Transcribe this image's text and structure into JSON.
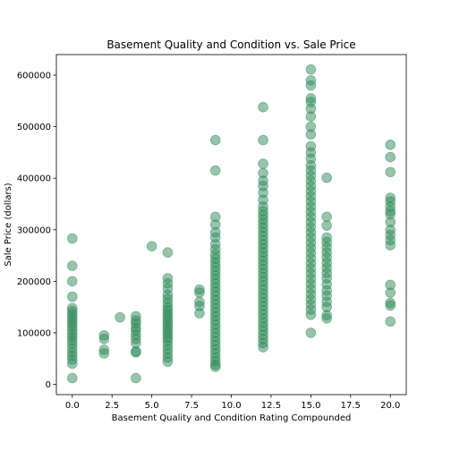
{
  "chart_data": {
    "type": "scatter",
    "title": "Basement Quality and Condition vs. Sale Price",
    "xlabel": "Basement Quality and Condition Rating Compounded",
    "ylabel": "Sale Price (dollars)",
    "xlim": [
      -1.0,
      21.0
    ],
    "ylim": [
      -20000,
      640000
    ],
    "xticks": [
      0.0,
      2.5,
      5.0,
      7.5,
      10.0,
      12.5,
      15.0,
      17.5,
      20.0
    ],
    "xtick_labels": [
      "0.0",
      "2.5",
      "5.0",
      "7.5",
      "10.0",
      "12.5",
      "15.0",
      "17.5",
      "20.0"
    ],
    "yticks": [
      0,
      100000,
      200000,
      300000,
      400000,
      500000,
      600000
    ],
    "ytick_labels": [
      "0",
      "100000",
      "200000",
      "300000",
      "400000",
      "500000",
      "600000"
    ],
    "grid": false,
    "marker_color": "#2e8b57",
    "series": [
      {
        "points": [
          {
            "x": 0,
            "y": 12000
          },
          {
            "x": 0,
            "y": 40000
          },
          {
            "x": 0,
            "y": 48000
          },
          {
            "x": 0,
            "y": 55000
          },
          {
            "x": 0,
            "y": 62000
          },
          {
            "x": 0,
            "y": 70000
          },
          {
            "x": 0,
            "y": 78000
          },
          {
            "x": 0,
            "y": 85000
          },
          {
            "x": 0,
            "y": 92000
          },
          {
            "x": 0,
            "y": 98000
          },
          {
            "x": 0,
            "y": 105000
          },
          {
            "x": 0,
            "y": 112000
          },
          {
            "x": 0,
            "y": 118000
          },
          {
            "x": 0,
            "y": 124000
          },
          {
            "x": 0,
            "y": 130000
          },
          {
            "x": 0,
            "y": 136000
          },
          {
            "x": 0,
            "y": 142000
          },
          {
            "x": 0,
            "y": 148000
          },
          {
            "x": 0,
            "y": 170000
          },
          {
            "x": 0,
            "y": 200000
          },
          {
            "x": 0,
            "y": 230000
          },
          {
            "x": 0,
            "y": 283000
          },
          {
            "x": 2,
            "y": 60000
          },
          {
            "x": 2,
            "y": 67000
          },
          {
            "x": 2,
            "y": 88000
          },
          {
            "x": 2,
            "y": 95000
          },
          {
            "x": 3,
            "y": 130000
          },
          {
            "x": 4,
            "y": 12000
          },
          {
            "x": 4,
            "y": 62000
          },
          {
            "x": 4,
            "y": 64000
          },
          {
            "x": 4,
            "y": 80000
          },
          {
            "x": 4,
            "y": 88000
          },
          {
            "x": 4,
            "y": 96000
          },
          {
            "x": 4,
            "y": 104000
          },
          {
            "x": 4,
            "y": 110000
          },
          {
            "x": 4,
            "y": 118000
          },
          {
            "x": 4,
            "y": 124000
          },
          {
            "x": 4,
            "y": 132000
          },
          {
            "x": 5,
            "y": 268000
          },
          {
            "x": 6,
            "y": 44000
          },
          {
            "x": 6,
            "y": 52000
          },
          {
            "x": 6,
            "y": 60000
          },
          {
            "x": 6,
            "y": 68000
          },
          {
            "x": 6,
            "y": 76000
          },
          {
            "x": 6,
            "y": 84000
          },
          {
            "x": 6,
            "y": 90000
          },
          {
            "x": 6,
            "y": 96000
          },
          {
            "x": 6,
            "y": 102000
          },
          {
            "x": 6,
            "y": 108000
          },
          {
            "x": 6,
            "y": 114000
          },
          {
            "x": 6,
            "y": 120000
          },
          {
            "x": 6,
            "y": 126000
          },
          {
            "x": 6,
            "y": 132000
          },
          {
            "x": 6,
            "y": 138000
          },
          {
            "x": 6,
            "y": 144000
          },
          {
            "x": 6,
            "y": 150000
          },
          {
            "x": 6,
            "y": 158000
          },
          {
            "x": 6,
            "y": 166000
          },
          {
            "x": 6,
            "y": 174000
          },
          {
            "x": 6,
            "y": 186000
          },
          {
            "x": 6,
            "y": 196000
          },
          {
            "x": 6,
            "y": 206000
          },
          {
            "x": 6,
            "y": 256000
          },
          {
            "x": 8,
            "y": 138000
          },
          {
            "x": 8,
            "y": 152000
          },
          {
            "x": 8,
            "y": 160000
          },
          {
            "x": 8,
            "y": 178000
          },
          {
            "x": 8,
            "y": 184000
          },
          {
            "x": 9,
            "y": 34000
          },
          {
            "x": 9,
            "y": 38000
          },
          {
            "x": 9,
            "y": 45000
          },
          {
            "x": 9,
            "y": 52000
          },
          {
            "x": 9,
            "y": 60000
          },
          {
            "x": 9,
            "y": 68000
          },
          {
            "x": 9,
            "y": 76000
          },
          {
            "x": 9,
            "y": 84000
          },
          {
            "x": 9,
            "y": 92000
          },
          {
            "x": 9,
            "y": 100000
          },
          {
            "x": 9,
            "y": 108000
          },
          {
            "x": 9,
            "y": 116000
          },
          {
            "x": 9,
            "y": 124000
          },
          {
            "x": 9,
            "y": 132000
          },
          {
            "x": 9,
            "y": 140000
          },
          {
            "x": 9,
            "y": 148000
          },
          {
            "x": 9,
            "y": 156000
          },
          {
            "x": 9,
            "y": 164000
          },
          {
            "x": 9,
            "y": 172000
          },
          {
            "x": 9,
            "y": 180000
          },
          {
            "x": 9,
            "y": 188000
          },
          {
            "x": 9,
            "y": 196000
          },
          {
            "x": 9,
            "y": 204000
          },
          {
            "x": 9,
            "y": 212000
          },
          {
            "x": 9,
            "y": 220000
          },
          {
            "x": 9,
            "y": 228000
          },
          {
            "x": 9,
            "y": 236000
          },
          {
            "x": 9,
            "y": 244000
          },
          {
            "x": 9,
            "y": 252000
          },
          {
            "x": 9,
            "y": 262000
          },
          {
            "x": 9,
            "y": 272000
          },
          {
            "x": 9,
            "y": 285000
          },
          {
            "x": 9,
            "y": 295000
          },
          {
            "x": 9,
            "y": 310000
          },
          {
            "x": 9,
            "y": 325000
          },
          {
            "x": 9,
            "y": 415000
          },
          {
            "x": 9,
            "y": 474000
          },
          {
            "x": 12,
            "y": 72000
          },
          {
            "x": 12,
            "y": 80000
          },
          {
            "x": 12,
            "y": 88000
          },
          {
            "x": 12,
            "y": 96000
          },
          {
            "x": 12,
            "y": 104000
          },
          {
            "x": 12,
            "y": 112000
          },
          {
            "x": 12,
            "y": 120000
          },
          {
            "x": 12,
            "y": 128000
          },
          {
            "x": 12,
            "y": 136000
          },
          {
            "x": 12,
            "y": 144000
          },
          {
            "x": 12,
            "y": 152000
          },
          {
            "x": 12,
            "y": 160000
          },
          {
            "x": 12,
            "y": 168000
          },
          {
            "x": 12,
            "y": 176000
          },
          {
            "x": 12,
            "y": 184000
          },
          {
            "x": 12,
            "y": 192000
          },
          {
            "x": 12,
            "y": 200000
          },
          {
            "x": 12,
            "y": 208000
          },
          {
            "x": 12,
            "y": 216000
          },
          {
            "x": 12,
            "y": 224000
          },
          {
            "x": 12,
            "y": 232000
          },
          {
            "x": 12,
            "y": 240000
          },
          {
            "x": 12,
            "y": 248000
          },
          {
            "x": 12,
            "y": 256000
          },
          {
            "x": 12,
            "y": 264000
          },
          {
            "x": 12,
            "y": 272000
          },
          {
            "x": 12,
            "y": 280000
          },
          {
            "x": 12,
            "y": 288000
          },
          {
            "x": 12,
            "y": 296000
          },
          {
            "x": 12,
            "y": 304000
          },
          {
            "x": 12,
            "y": 312000
          },
          {
            "x": 12,
            "y": 320000
          },
          {
            "x": 12,
            "y": 328000
          },
          {
            "x": 12,
            "y": 336000
          },
          {
            "x": 12,
            "y": 345000
          },
          {
            "x": 12,
            "y": 358000
          },
          {
            "x": 12,
            "y": 372000
          },
          {
            "x": 12,
            "y": 385000
          },
          {
            "x": 12,
            "y": 395000
          },
          {
            "x": 12,
            "y": 410000
          },
          {
            "x": 12,
            "y": 428000
          },
          {
            "x": 12,
            "y": 474000
          },
          {
            "x": 12,
            "y": 538000
          },
          {
            "x": 15,
            "y": 100000
          },
          {
            "x": 15,
            "y": 135000
          },
          {
            "x": 15,
            "y": 145000
          },
          {
            "x": 15,
            "y": 155000
          },
          {
            "x": 15,
            "y": 165000
          },
          {
            "x": 15,
            "y": 175000
          },
          {
            "x": 15,
            "y": 185000
          },
          {
            "x": 15,
            "y": 195000
          },
          {
            "x": 15,
            "y": 205000
          },
          {
            "x": 15,
            "y": 215000
          },
          {
            "x": 15,
            "y": 225000
          },
          {
            "x": 15,
            "y": 235000
          },
          {
            "x": 15,
            "y": 245000
          },
          {
            "x": 15,
            "y": 255000
          },
          {
            "x": 15,
            "y": 265000
          },
          {
            "x": 15,
            "y": 275000
          },
          {
            "x": 15,
            "y": 285000
          },
          {
            "x": 15,
            "y": 295000
          },
          {
            "x": 15,
            "y": 305000
          },
          {
            "x": 15,
            "y": 315000
          },
          {
            "x": 15,
            "y": 325000
          },
          {
            "x": 15,
            "y": 335000
          },
          {
            "x": 15,
            "y": 345000
          },
          {
            "x": 15,
            "y": 355000
          },
          {
            "x": 15,
            "y": 365000
          },
          {
            "x": 15,
            "y": 375000
          },
          {
            "x": 15,
            "y": 385000
          },
          {
            "x": 15,
            "y": 395000
          },
          {
            "x": 15,
            "y": 405000
          },
          {
            "x": 15,
            "y": 415000
          },
          {
            "x": 15,
            "y": 425000
          },
          {
            "x": 15,
            "y": 438000
          },
          {
            "x": 15,
            "y": 450000
          },
          {
            "x": 15,
            "y": 462000
          },
          {
            "x": 15,
            "y": 485000
          },
          {
            "x": 15,
            "y": 500000
          },
          {
            "x": 15,
            "y": 520000
          },
          {
            "x": 15,
            "y": 535000
          },
          {
            "x": 15,
            "y": 548000
          },
          {
            "x": 15,
            "y": 555000
          },
          {
            "x": 15,
            "y": 580000
          },
          {
            "x": 15,
            "y": 590000
          },
          {
            "x": 15,
            "y": 611000
          },
          {
            "x": 16,
            "y": 128000
          },
          {
            "x": 16,
            "y": 134000
          },
          {
            "x": 16,
            "y": 150000
          },
          {
            "x": 16,
            "y": 160000
          },
          {
            "x": 16,
            "y": 172000
          },
          {
            "x": 16,
            "y": 182000
          },
          {
            "x": 16,
            "y": 194000
          },
          {
            "x": 16,
            "y": 206000
          },
          {
            "x": 16,
            "y": 216000
          },
          {
            "x": 16,
            "y": 226000
          },
          {
            "x": 16,
            "y": 236000
          },
          {
            "x": 16,
            "y": 246000
          },
          {
            "x": 16,
            "y": 256000
          },
          {
            "x": 16,
            "y": 266000
          },
          {
            "x": 16,
            "y": 276000
          },
          {
            "x": 16,
            "y": 285000
          },
          {
            "x": 16,
            "y": 308000
          },
          {
            "x": 16,
            "y": 325000
          },
          {
            "x": 16,
            "y": 401000
          },
          {
            "x": 20,
            "y": 122000
          },
          {
            "x": 20,
            "y": 153000
          },
          {
            "x": 20,
            "y": 158000
          },
          {
            "x": 20,
            "y": 178000
          },
          {
            "x": 20,
            "y": 193000
          },
          {
            "x": 20,
            "y": 270000
          },
          {
            "x": 20,
            "y": 280000
          },
          {
            "x": 20,
            "y": 290000
          },
          {
            "x": 20,
            "y": 300000
          },
          {
            "x": 20,
            "y": 315000
          },
          {
            "x": 20,
            "y": 330000
          },
          {
            "x": 20,
            "y": 336000
          },
          {
            "x": 20,
            "y": 345000
          },
          {
            "x": 20,
            "y": 355000
          },
          {
            "x": 20,
            "y": 362000
          },
          {
            "x": 20,
            "y": 412000
          },
          {
            "x": 20,
            "y": 441000
          },
          {
            "x": 20,
            "y": 465000
          }
        ]
      }
    ]
  }
}
